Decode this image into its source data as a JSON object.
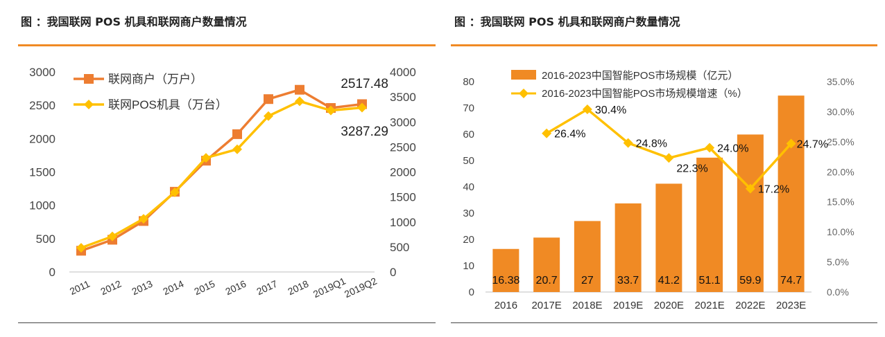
{
  "panels": [
    {
      "title": "图 ：我国联网 POS 机具和联网商户数量情况"
    },
    {
      "title": "图 ：我国联网 POS 机具和联网商户数量情况"
    }
  ],
  "chart_data": [
    {
      "type": "line",
      "categories": [
        "2011",
        "2012",
        "2013",
        "2014",
        "2015",
        "2016",
        "2017",
        "2018",
        "2019Q1",
        "2019Q2"
      ],
      "series": [
        {
          "name": "联网商户（万户）",
          "axis": "left",
          "color": "#ed7d31",
          "values": [
            318,
            483,
            764,
            1203,
            1669,
            2067,
            2593,
            2733,
            2460,
            2517.48
          ]
        },
        {
          "name": "联网POS机具（万台）",
          "axis": "right",
          "color": "#ffc000",
          "values": [
            483,
            711,
            1063,
            1594,
            2282,
            2454,
            3118,
            3414,
            3230,
            3287.29
          ]
        }
      ],
      "yleft": {
        "min": 0,
        "max": 3000,
        "ticks": [
          "0",
          "500",
          "1000",
          "1500",
          "2000",
          "2500",
          "3000"
        ]
      },
      "yright": {
        "min": 0,
        "max": 4000,
        "ticks": [
          "0",
          "500",
          "1000",
          "1500",
          "2000",
          "2500",
          "3000",
          "3500",
          "4000"
        ]
      },
      "annotations": [
        {
          "text": "2517.48",
          "series": 0,
          "index": 9
        },
        {
          "text": "3287.29",
          "series": 1,
          "index": 9
        }
      ]
    },
    {
      "type": "bar",
      "categories": [
        "2016",
        "2017E",
        "2018E",
        "2019E",
        "2020E",
        "2021E",
        "2022E",
        "2023E"
      ],
      "series": [
        {
          "name": "2016-2023中国智能POS市场规模（亿元）",
          "kind": "bar",
          "axis": "left",
          "color": "#f08a24",
          "values": [
            16.38,
            20.7,
            27,
            33.7,
            41.2,
            51.1,
            59.9,
            74.7
          ],
          "labels": [
            "16.38",
            "20.7",
            "27",
            "33.7",
            "41.2",
            "51.1",
            "59.9",
            "74.7"
          ]
        },
        {
          "name": "2016-2023中国智能POS市场规模增速（%）",
          "kind": "line",
          "axis": "right",
          "color": "#ffc000",
          "values": [
            null,
            26.4,
            30.4,
            24.8,
            22.3,
            24.0,
            17.2,
            24.7
          ],
          "labels": [
            "",
            "26.4%",
            "30.4%",
            "24.8%",
            "22.3%",
            "24.0%",
            "17.2%",
            "24.7%"
          ]
        }
      ],
      "yleft": {
        "min": 0,
        "max": 80,
        "ticks": [
          "0",
          "10",
          "20",
          "30",
          "40",
          "50",
          "60",
          "70",
          "80"
        ]
      },
      "yright": {
        "min": 0,
        "max": 35,
        "ticks": [
          "0.0%",
          "5.0%",
          "10.0%",
          "15.0%",
          "20.0%",
          "25.0%",
          "30.0%",
          "35.0%"
        ]
      }
    }
  ]
}
